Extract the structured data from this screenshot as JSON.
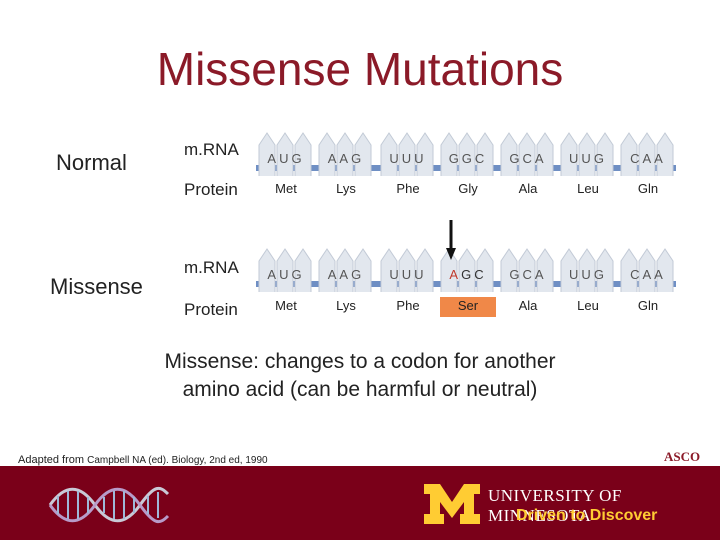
{
  "title": "Missense Mutations",
  "labels": {
    "normal": "Normal",
    "missense": "Missense",
    "mrna": "m.RNA",
    "protein": "Protein"
  },
  "normal": {
    "codons": [
      "AUG",
      "AAG",
      "UUU",
      "GGC",
      "GCA",
      "UUG",
      "CAA"
    ],
    "amino_acids": [
      "Met",
      "Lys",
      "Phe",
      "Gly",
      "Ala",
      "Leu",
      "Gln"
    ]
  },
  "missense": {
    "codons": [
      "AUG",
      "AAG",
      "UUU",
      "AGC",
      "GCA",
      "UUG",
      "CAA"
    ],
    "amino_acids": [
      "Met",
      "Lys",
      "Phe",
      "Ser",
      "Ala",
      "Leu",
      "Gln"
    ],
    "mutated_index": 3
  },
  "description": {
    "line1": "Missense:  changes to a codon for another",
    "line2": "amino acid (can be harmful or neutral)"
  },
  "credit": {
    "prefix": "Adapted from",
    "source": "Campbell NA (ed). Biology, 2nd ed, 1990"
  },
  "logo_asco": "ASCO",
  "footer": {
    "university": "UNIVERSITY OF MINNESOTA",
    "tagline": "Driven to Discover"
  },
  "colors": {
    "title": "#8b1a28",
    "strand": "#6f8fc4",
    "mutation_highlight": "#f08848",
    "footer_bg": "#7a0019",
    "gold": "#ffcc33"
  }
}
